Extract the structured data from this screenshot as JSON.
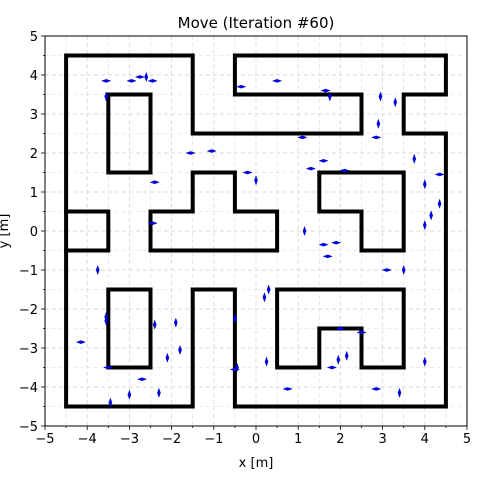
{
  "chart_data": {
    "type": "scatter",
    "title": "Move (Iteration #60)",
    "xlabel": "x [m]",
    "ylabel": "y [m]",
    "xlim": [
      -5,
      5
    ],
    "ylim": [
      -5,
      5
    ],
    "grid": true,
    "grid_style": "dashed",
    "major_ticks": [
      -5,
      -4,
      -3,
      -2,
      -1,
      0,
      1,
      2,
      3,
      4,
      5
    ],
    "minor_step": 0.5,
    "x_tick_labels": [
      "−5",
      "−4",
      "−3",
      "−2",
      "−1",
      "0",
      "1",
      "2",
      "3",
      "4",
      "5"
    ],
    "y_tick_labels": [
      "−5",
      "−4",
      "−3",
      "−2",
      "−1",
      "0",
      "1",
      "2",
      "3",
      "4",
      "5"
    ],
    "colors": {
      "walls": "#000000",
      "particles": "#0000ff",
      "grid": "#d9d9d9"
    },
    "walls": [
      [
        [
          -4.5,
          -4.5
        ],
        [
          -4.5,
          4.5
        ],
        [
          -1.5,
          4.5
        ],
        [
          -1.5,
          2.5
        ],
        [
          2.5,
          2.5
        ],
        [
          2.5,
          3.5
        ],
        [
          -0.5,
          3.5
        ],
        [
          -0.5,
          4.5
        ],
        [
          4.5,
          4.5
        ],
        [
          4.5,
          3.5
        ],
        [
          3.5,
          3.5
        ],
        [
          3.5,
          2.5
        ],
        [
          4.5,
          2.5
        ],
        [
          4.5,
          -4.5
        ],
        [
          -0.5,
          -4.5
        ],
        [
          -0.5,
          -1.5
        ],
        [
          -1.5,
          -1.5
        ],
        [
          -1.5,
          -4.5
        ],
        [
          -4.5,
          -4.5
        ]
      ],
      [
        [
          -4.5,
          0.5
        ],
        [
          -3.5,
          0.5
        ],
        [
          -3.5,
          -0.5
        ],
        [
          -4.5,
          -0.5
        ]
      ],
      [
        [
          -3.5,
          1.5
        ],
        [
          -3.5,
          3.5
        ],
        [
          -2.5,
          3.5
        ],
        [
          -2.5,
          1.5
        ],
        [
          -3.5,
          1.5
        ]
      ],
      [
        [
          -2.5,
          0.5
        ],
        [
          -1.5,
          0.5
        ],
        [
          -1.5,
          1.5
        ],
        [
          -0.5,
          1.5
        ],
        [
          -0.5,
          0.5
        ],
        [
          0.5,
          0.5
        ],
        [
          0.5,
          -0.5
        ],
        [
          -2.5,
          -0.5
        ],
        [
          -2.5,
          0.5
        ]
      ],
      [
        [
          1.5,
          0.5
        ],
        [
          1.5,
          1.5
        ],
        [
          3.5,
          1.5
        ],
        [
          3.5,
          -0.5
        ],
        [
          2.5,
          -0.5
        ],
        [
          2.5,
          0.5
        ],
        [
          1.5,
          0.5
        ]
      ],
      [
        [
          -3.5,
          -1.5
        ],
        [
          -3.5,
          -3.5
        ],
        [
          -2.5,
          -3.5
        ],
        [
          -2.5,
          -1.5
        ],
        [
          -3.5,
          -1.5
        ]
      ],
      [
        [
          0.5,
          -1.5
        ],
        [
          3.5,
          -1.5
        ],
        [
          3.5,
          -3.5
        ],
        [
          2.5,
          -3.5
        ],
        [
          2.5,
          -2.5
        ],
        [
          1.5,
          -2.5
        ],
        [
          1.5,
          -3.5
        ],
        [
          0.5,
          -3.5
        ],
        [
          0.5,
          -1.5
        ]
      ]
    ],
    "particles": [
      {
        "x": -3.55,
        "y": 3.85,
        "o": "h"
      },
      {
        "x": -2.95,
        "y": 3.85,
        "o": "h"
      },
      {
        "x": -2.6,
        "y": 3.95,
        "o": "v"
      },
      {
        "x": -2.45,
        "y": 3.85,
        "o": "h"
      },
      {
        "x": -2.75,
        "y": 3.95,
        "o": "h"
      },
      {
        "x": -3.55,
        "y": 3.45,
        "o": "v"
      },
      {
        "x": -0.35,
        "y": 3.7,
        "o": "h"
      },
      {
        "x": 0.5,
        "y": 3.85,
        "o": "h"
      },
      {
        "x": 1.65,
        "y": 3.6,
        "o": "h"
      },
      {
        "x": 1.75,
        "y": 3.45,
        "o": "v"
      },
      {
        "x": 2.95,
        "y": 3.45,
        "o": "v"
      },
      {
        "x": 3.3,
        "y": 3.3,
        "o": "v"
      },
      {
        "x": 2.9,
        "y": 2.75,
        "o": "v"
      },
      {
        "x": 2.85,
        "y": 2.4,
        "o": "h"
      },
      {
        "x": 1.1,
        "y": 2.4,
        "o": "h"
      },
      {
        "x": 3.75,
        "y": 1.85,
        "o": "v"
      },
      {
        "x": -1.55,
        "y": 2.0,
        "o": "h"
      },
      {
        "x": -1.05,
        "y": 2.05,
        "o": "h"
      },
      {
        "x": -0.2,
        "y": 1.5,
        "o": "h"
      },
      {
        "x": 0.0,
        "y": 1.3,
        "o": "v"
      },
      {
        "x": 1.3,
        "y": 1.6,
        "o": "h"
      },
      {
        "x": 1.6,
        "y": 1.8,
        "o": "h"
      },
      {
        "x": 2.1,
        "y": 1.55,
        "o": "h"
      },
      {
        "x": 4.35,
        "y": 1.45,
        "o": "h"
      },
      {
        "x": 4.0,
        "y": 1.2,
        "o": "v"
      },
      {
        "x": 4.35,
        "y": 0.7,
        "o": "v"
      },
      {
        "x": 4.15,
        "y": 0.4,
        "o": "v"
      },
      {
        "x": 4.0,
        "y": 0.15,
        "o": "v"
      },
      {
        "x": -2.4,
        "y": 1.25,
        "o": "h"
      },
      {
        "x": -2.45,
        "y": 0.2,
        "o": "h"
      },
      {
        "x": 1.15,
        "y": 0.0,
        "o": "v"
      },
      {
        "x": 1.6,
        "y": -0.35,
        "o": "h"
      },
      {
        "x": 1.9,
        "y": -0.3,
        "o": "h"
      },
      {
        "x": 1.7,
        "y": -0.65,
        "o": "h"
      },
      {
        "x": 3.1,
        "y": -1.0,
        "o": "h"
      },
      {
        "x": 3.5,
        "y": -1.0,
        "o": "v"
      },
      {
        "x": -3.75,
        "y": -1.0,
        "o": "v"
      },
      {
        "x": 0.3,
        "y": -1.5,
        "o": "v"
      },
      {
        "x": 0.2,
        "y": -1.7,
        "o": "v"
      },
      {
        "x": -3.55,
        "y": -2.2,
        "o": "v"
      },
      {
        "x": -3.55,
        "y": -2.3,
        "o": "v"
      },
      {
        "x": -2.4,
        "y": -2.4,
        "o": "v"
      },
      {
        "x": -1.9,
        "y": -2.35,
        "o": "v"
      },
      {
        "x": -0.5,
        "y": -2.25,
        "o": "v"
      },
      {
        "x": -4.15,
        "y": -2.85,
        "o": "h"
      },
      {
        "x": -2.1,
        "y": -3.25,
        "o": "v"
      },
      {
        "x": -1.8,
        "y": -3.05,
        "o": "v"
      },
      {
        "x": -3.5,
        "y": -3.5,
        "o": "h"
      },
      {
        "x": -2.7,
        "y": -3.8,
        "o": "h"
      },
      {
        "x": -3.0,
        "y": -4.2,
        "o": "v"
      },
      {
        "x": -2.3,
        "y": -4.15,
        "o": "v"
      },
      {
        "x": -3.45,
        "y": -4.4,
        "o": "v"
      },
      {
        "x": -0.45,
        "y": -3.5,
        "o": "v"
      },
      {
        "x": -0.5,
        "y": -3.55,
        "o": "h"
      },
      {
        "x": 0.25,
        "y": -3.35,
        "o": "v"
      },
      {
        "x": 0.75,
        "y": -4.05,
        "o": "h"
      },
      {
        "x": 1.8,
        "y": -3.5,
        "o": "h"
      },
      {
        "x": 1.95,
        "y": -3.3,
        "o": "v"
      },
      {
        "x": 2.15,
        "y": -3.2,
        "o": "v"
      },
      {
        "x": 2.0,
        "y": -2.5,
        "o": "h"
      },
      {
        "x": 2.5,
        "y": -2.6,
        "o": "h"
      },
      {
        "x": 2.85,
        "y": -4.05,
        "o": "h"
      },
      {
        "x": 3.4,
        "y": -4.15,
        "o": "v"
      },
      {
        "x": 4.0,
        "y": -3.35,
        "o": "v"
      }
    ]
  }
}
